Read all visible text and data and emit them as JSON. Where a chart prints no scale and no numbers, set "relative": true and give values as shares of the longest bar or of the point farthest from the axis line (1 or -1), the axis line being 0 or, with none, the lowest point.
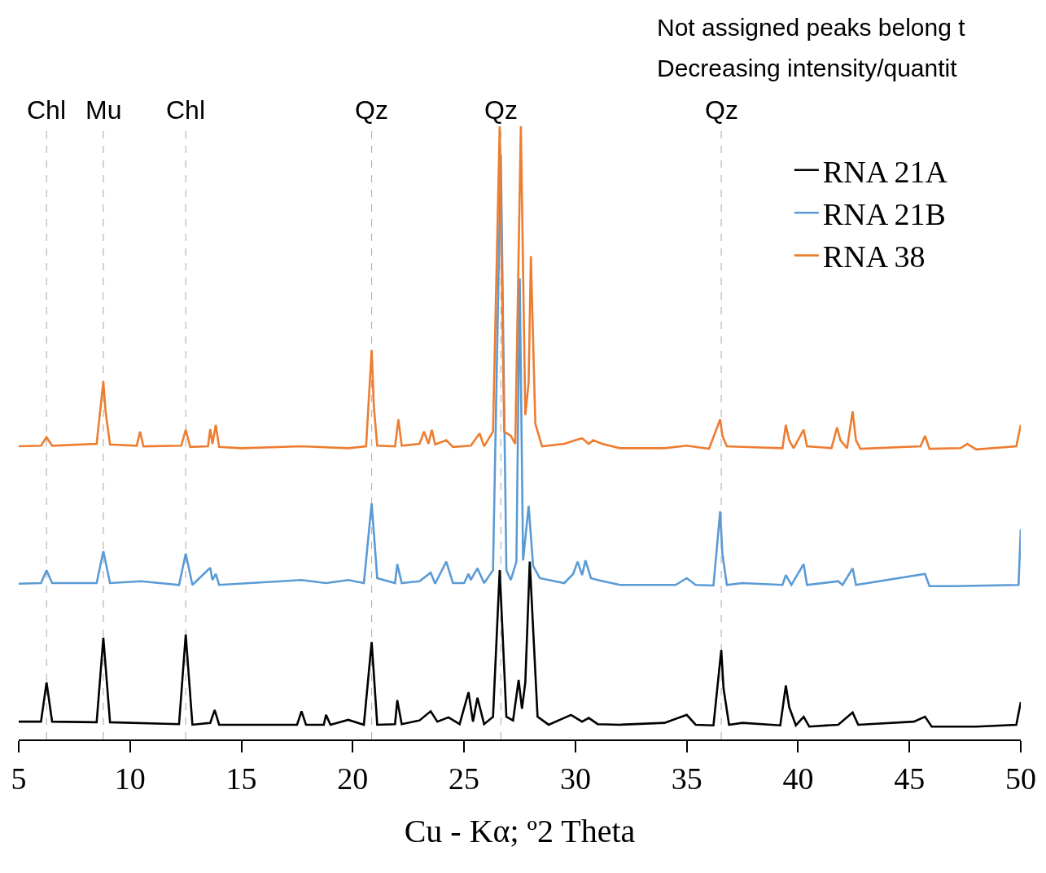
{
  "chart_data": {
    "type": "line",
    "relative": true,
    "xlabel": "Cu - Kα; º2 Theta",
    "xlim": [
      5,
      50
    ],
    "xticks": [
      5,
      10,
      15,
      20,
      25,
      30,
      35,
      40,
      45,
      50
    ],
    "legend": "top right",
    "annotations": [
      "Not assigned peaks belong t",
      "Decreasing intensity/quantit"
    ],
    "ref_lines": [
      {
        "axis": "x",
        "value": 6.25,
        "label": "Chl",
        "color": "#a6a6a6",
        "line_style": "dashed"
      },
      {
        "axis": "x",
        "value": 8.8,
        "label": "Mu",
        "color": "#a6a6a6",
        "line_style": "dashed"
      },
      {
        "axis": "x",
        "value": 12.5,
        "label": "Chl",
        "color": "#a6a6a6",
        "line_style": "dashed"
      },
      {
        "axis": "x",
        "value": 20.85,
        "label": "Qz",
        "color": "#a6a6a6",
        "line_style": "dashed"
      },
      {
        "axis": "x",
        "value": 26.65,
        "label": "Qz",
        "color": "#a6a6a6",
        "line_style": "dashed"
      },
      {
        "axis": "x",
        "value": 36.55,
        "label": "Qz",
        "color": "#a6a6a6",
        "line_style": "dashed"
      }
    ],
    "series": [
      {
        "name": "RNA 21A",
        "color": "#000000",
        "x": [
          5,
          6,
          6.25,
          6.5,
          8.5,
          8.8,
          9.1,
          12.2,
          12.5,
          12.8,
          13.6,
          13.8,
          14,
          17.5,
          17.7,
          17.9,
          18.7,
          18.8,
          19,
          19.8,
          20.5,
          20.85,
          21.1,
          21.9,
          22,
          22.2,
          23,
          23.5,
          23.8,
          24.3,
          24.8,
          25.2,
          25.4,
          25.6,
          25.9,
          26.3,
          26.6,
          26.9,
          27.2,
          27.45,
          27.6,
          27.75,
          27.95,
          28.3,
          28.8,
          29.8,
          30.3,
          30.6,
          31,
          32,
          34,
          35,
          35.4,
          36.2,
          36.55,
          36.65,
          36.9,
          37.5,
          39.2,
          39.45,
          39.6,
          39.9,
          40.25,
          40.5,
          41.8,
          42.45,
          42.7,
          45.2,
          45.7,
          46,
          48,
          49.8,
          50
        ],
        "values": [
          0.029,
          0.029,
          0.093,
          0.029,
          0.028,
          0.166,
          0.028,
          0.025,
          0.171,
          0.024,
          0.027,
          0.048,
          0.024,
          0.024,
          0.046,
          0.024,
          0.024,
          0.04,
          0.024,
          0.032,
          0.024,
          0.159,
          0.024,
          0.025,
          0.064,
          0.025,
          0.031,
          0.046,
          0.029,
          0.036,
          0.025,
          0.077,
          0.029,
          0.068,
          0.025,
          0.037,
          0.276,
          0.037,
          0.031,
          0.097,
          0.05,
          0.093,
          0.29,
          0.037,
          0.024,
          0.04,
          0.029,
          0.035,
          0.025,
          0.024,
          0.027,
          0.04,
          0.024,
          0.023,
          0.146,
          0.084,
          0.024,
          0.027,
          0.023,
          0.088,
          0.053,
          0.023,
          0.037,
          0.021,
          0.024,
          0.044,
          0.024,
          0.029,
          0.037,
          0.021,
          0.021,
          0.024,
          0.061
        ]
      },
      {
        "name": "RNA 21B",
        "color": "#5b9bd5",
        "x": [
          5,
          6,
          6.25,
          6.5,
          8.5,
          8.8,
          9.1,
          10.5,
          12.2,
          12.5,
          12.8,
          13.6,
          13.7,
          13.85,
          14,
          17.7,
          18.8,
          19.8,
          20.5,
          20.85,
          21.1,
          21.9,
          22,
          22.2,
          23,
          23.5,
          23.7,
          24.2,
          24.5,
          25,
          25.2,
          25.3,
          25.6,
          25.9,
          26.3,
          26.65,
          26.9,
          27.1,
          27.35,
          27.5,
          27.65,
          27.9,
          28.1,
          28.4,
          29.5,
          29.9,
          30.1,
          30.3,
          30.45,
          30.7,
          31,
          32,
          34.5,
          35,
          35.4,
          36.2,
          36.5,
          36.6,
          36.8,
          37.5,
          39.3,
          39.45,
          39.7,
          40.25,
          40.4,
          41.8,
          42,
          42.45,
          42.6,
          45.7,
          45.9,
          47,
          49.9,
          50
        ],
        "values": [
          0.254,
          0.255,
          0.276,
          0.255,
          0.255,
          0.307,
          0.255,
          0.258,
          0.252,
          0.303,
          0.252,
          0.28,
          0.26,
          0.27,
          0.252,
          0.26,
          0.255,
          0.26,
          0.255,
          0.385,
          0.263,
          0.255,
          0.286,
          0.255,
          0.258,
          0.272,
          0.254,
          0.29,
          0.255,
          0.255,
          0.27,
          0.26,
          0.279,
          0.255,
          0.276,
          0.954,
          0.276,
          0.26,
          0.29,
          0.752,
          0.292,
          0.381,
          0.283,
          0.263,
          0.255,
          0.27,
          0.29,
          0.268,
          0.292,
          0.263,
          0.26,
          0.252,
          0.252,
          0.263,
          0.252,
          0.251,
          0.372,
          0.303,
          0.252,
          0.255,
          0.252,
          0.268,
          0.252,
          0.286,
          0.252,
          0.258,
          0.252,
          0.279,
          0.252,
          0.27,
          0.25,
          0.25,
          0.252,
          0.343
        ]
      },
      {
        "name": "RNA 38",
        "color": "#ed7d31",
        "x": [
          5,
          6,
          6.25,
          6.5,
          8.5,
          8.8,
          8.9,
          9.1,
          10.3,
          10.45,
          10.6,
          12.3,
          12.5,
          12.7,
          13.5,
          13.6,
          13.7,
          13.85,
          14,
          15,
          17.7,
          19.8,
          20.6,
          20.85,
          20.95,
          21.1,
          21.9,
          22.05,
          22.2,
          23,
          23.2,
          23.4,
          23.55,
          23.7,
          24.2,
          24.5,
          25.3,
          25.7,
          25.9,
          26.3,
          26.6,
          26.8,
          27.1,
          27.3,
          27.55,
          27.75,
          27.9,
          28,
          28.2,
          28.5,
          29.5,
          30,
          30.3,
          30.6,
          30.8,
          31.2,
          32,
          34,
          35,
          36,
          36.5,
          36.6,
          36.8,
          37.5,
          39.3,
          39.45,
          39.6,
          39.8,
          40.25,
          40.4,
          41.5,
          41.75,
          41.9,
          42.2,
          42.45,
          42.6,
          42.8,
          45.5,
          45.7,
          45.9,
          47.3,
          47.6,
          48,
          49.8,
          50
        ],
        "values": [
          0.478,
          0.479,
          0.493,
          0.479,
          0.482,
          0.584,
          0.535,
          0.481,
          0.479,
          0.502,
          0.478,
          0.479,
          0.505,
          0.477,
          0.478,
          0.506,
          0.482,
          0.513,
          0.477,
          0.475,
          0.478,
          0.475,
          0.478,
          0.635,
          0.542,
          0.479,
          0.478,
          0.522,
          0.479,
          0.482,
          0.502,
          0.482,
          0.505,
          0.481,
          0.488,
          0.477,
          0.479,
          0.499,
          0.478,
          0.502,
          1,
          0.502,
          0.495,
          0.482,
          1,
          0.529,
          0.582,
          0.788,
          0.515,
          0.478,
          0.482,
          0.488,
          0.491,
          0.482,
          0.488,
          0.482,
          0.475,
          0.475,
          0.479,
          0.474,
          0.522,
          0.495,
          0.478,
          0.477,
          0.475,
          0.513,
          0.488,
          0.475,
          0.505,
          0.478,
          0.475,
          0.509,
          0.488,
          0.475,
          0.535,
          0.488,
          0.474,
          0.478,
          0.495,
          0.474,
          0.475,
          0.482,
          0.473,
          0.478,
          0.513
        ]
      }
    ]
  }
}
